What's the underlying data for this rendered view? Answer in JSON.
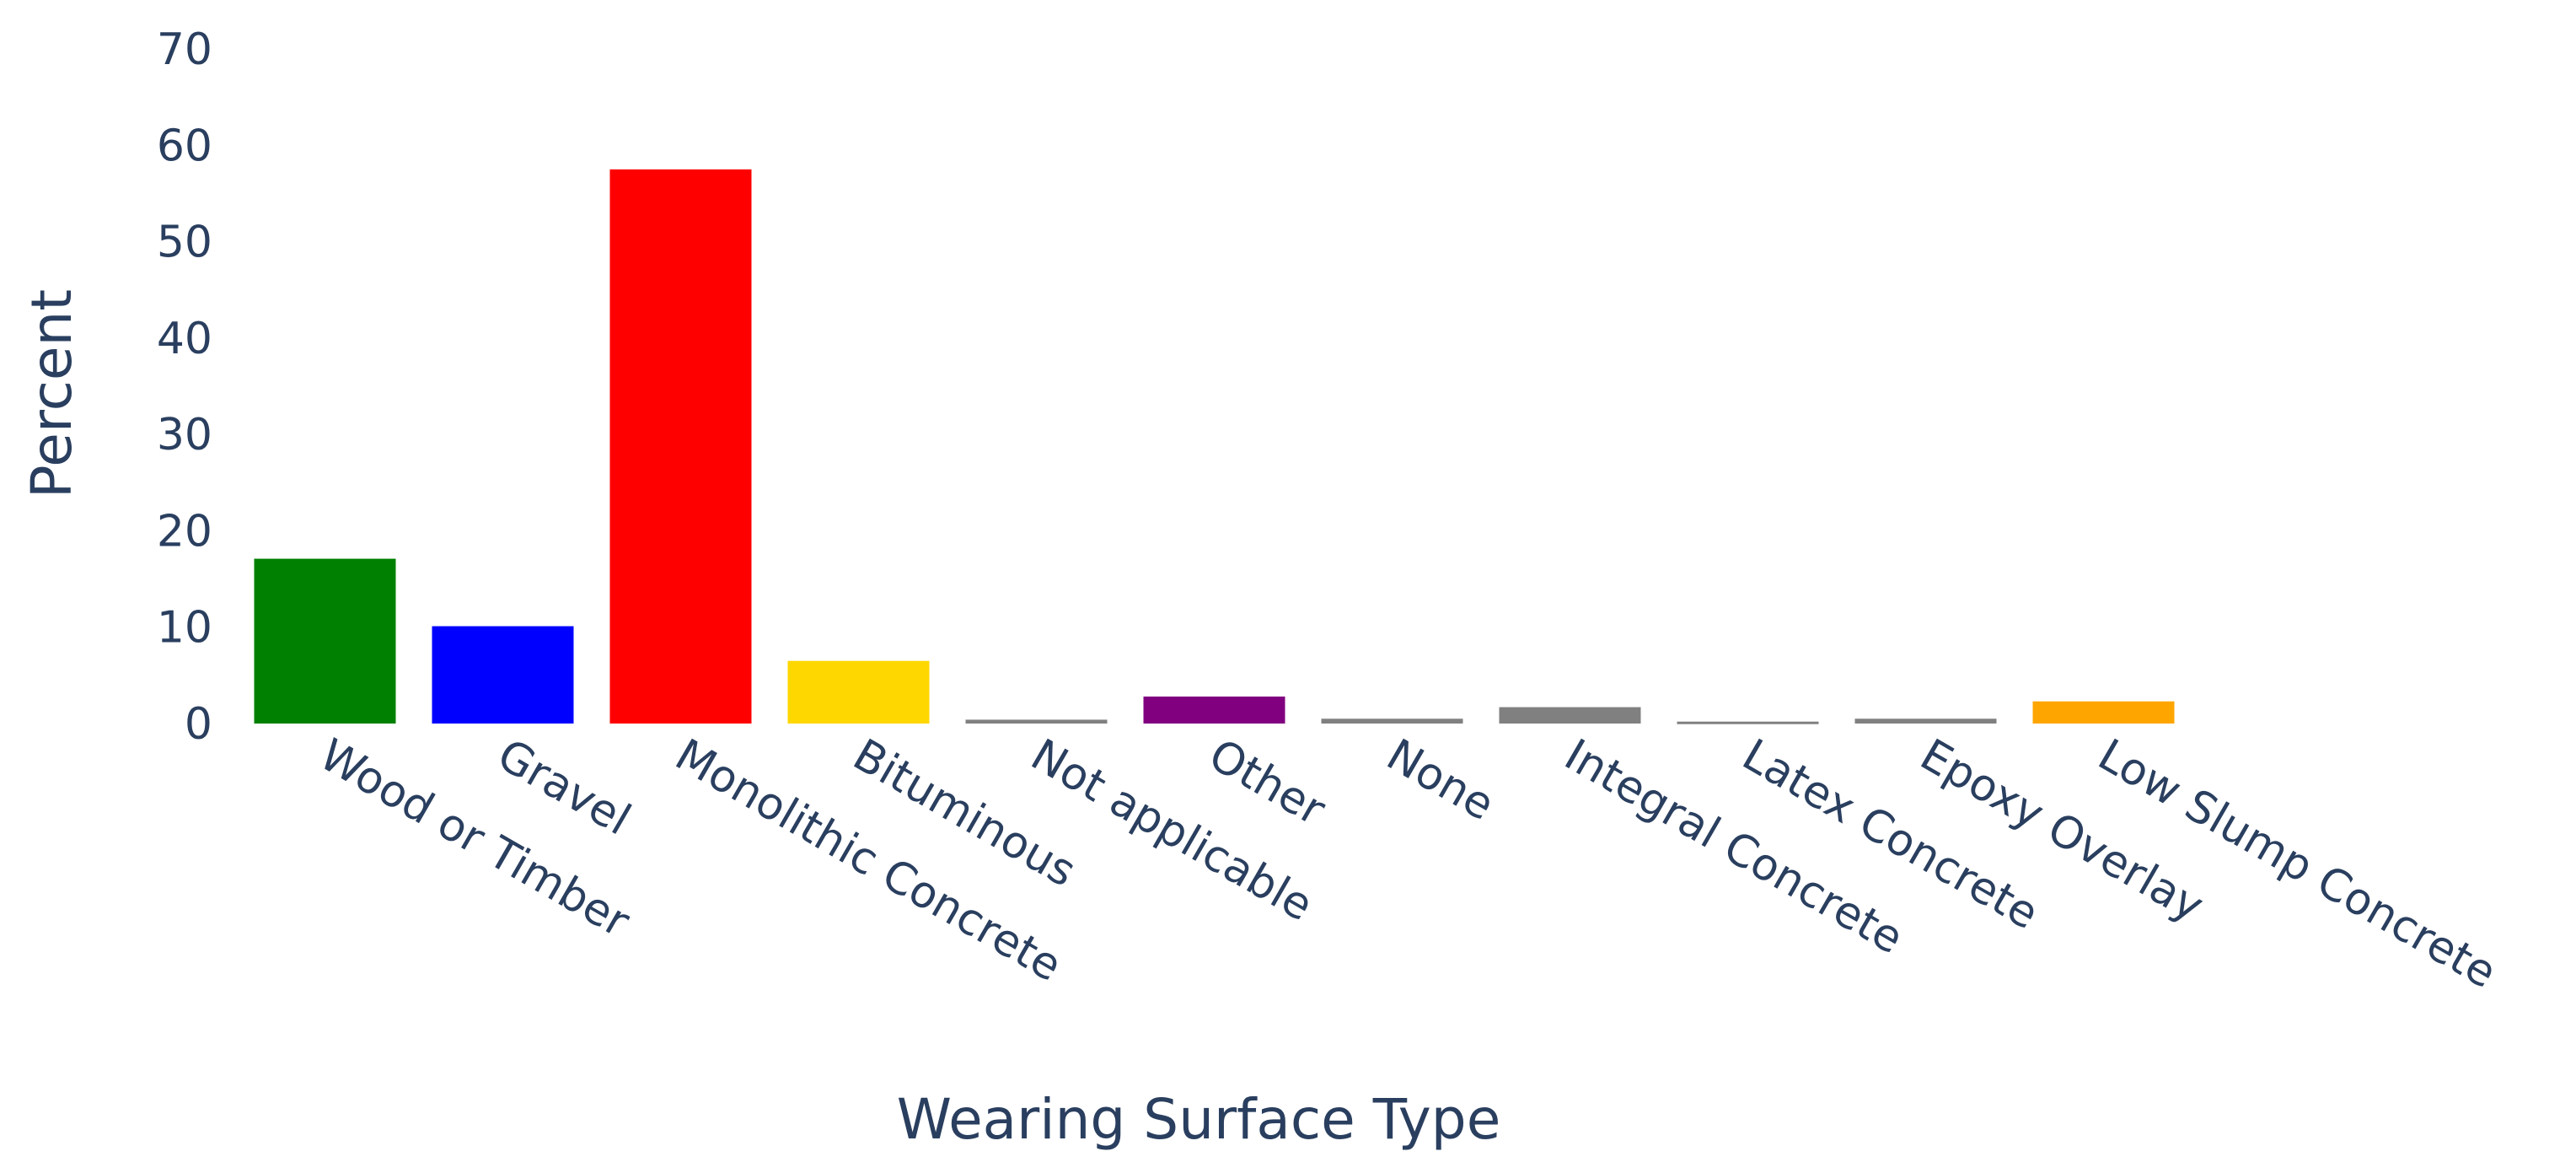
{
  "chart_data": {
    "type": "bar",
    "title": "",
    "xlabel": "Wearing Surface Type",
    "ylabel": "Percent",
    "ylim": [
      0,
      70
    ],
    "yticks": [
      0,
      10,
      20,
      30,
      40,
      50,
      60,
      70
    ],
    "grid": false,
    "categories": [
      "Wood or Timber",
      "Gravel",
      "Monolithic Concrete",
      "Bituminous",
      "Not applicable",
      "Other",
      "None",
      "Integral Concrete",
      "Latex Concrete",
      "Epoxy Overlay",
      "Low Slump Concrete"
    ],
    "values": [
      17.1,
      10.1,
      57.5,
      6.5,
      0.4,
      2.8,
      0.5,
      1.7,
      0.2,
      0.5,
      2.3
    ],
    "colors": [
      "#008000",
      "#0000ff",
      "#ff0000",
      "#ffd700",
      "#808080",
      "#800080",
      "#808080",
      "#808080",
      "#808080",
      "#808080",
      "#ffa500"
    ]
  }
}
